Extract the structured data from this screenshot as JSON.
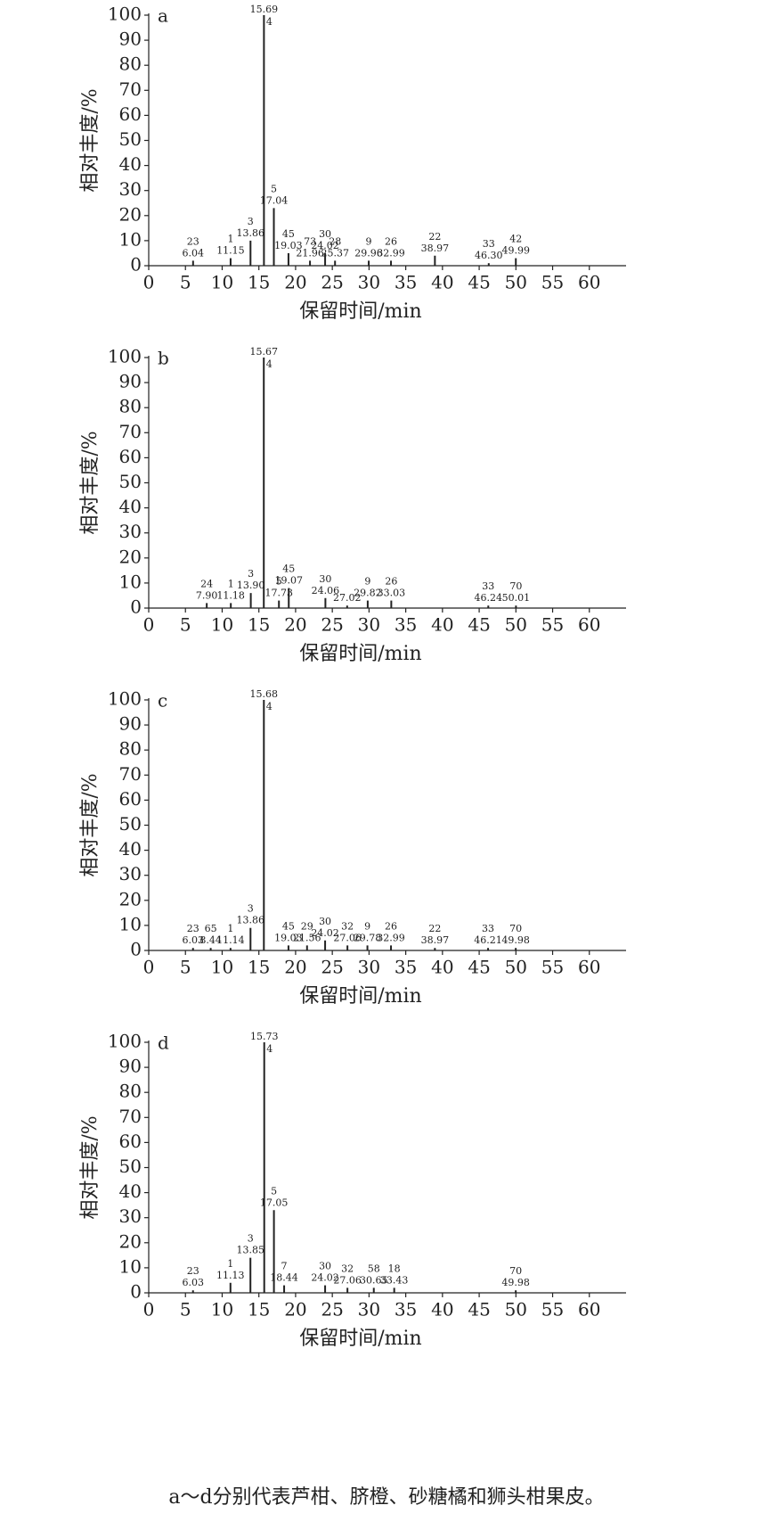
{
  "chart_data": [
    {
      "type": "chromatogram",
      "panel": "a",
      "xlabel": "保留时间/min",
      "ylabel": "相对丰度/%",
      "xlim": [
        0,
        65
      ],
      "ylim": [
        0,
        100
      ],
      "xticks": [
        0,
        5,
        10,
        15,
        20,
        25,
        30,
        35,
        40,
        45,
        50,
        55,
        60
      ],
      "yticks": [
        0,
        10,
        20,
        30,
        40,
        50,
        60,
        70,
        80,
        90,
        100
      ],
      "x": [
        6.04,
        11.15,
        13.86,
        15.69,
        17.04,
        19.03,
        21.96,
        24.02,
        25.37,
        29.96,
        32.99,
        38.97,
        {
          "value": 46.3,
          "label": "46.30"
        },
        49.99
      ],
      "values": [
        2,
        3,
        10,
        100,
        23,
        5,
        2,
        5,
        2,
        2,
        2,
        4,
        1,
        3
      ],
      "peak_labels": [
        "23",
        "1",
        "3",
        "4",
        "5",
        "45",
        "73",
        "30",
        "28",
        "9",
        "26",
        "22",
        "33",
        "42"
      ]
    },
    {
      "type": "chromatogram",
      "panel": "b",
      "xlabel": "保留时间/min",
      "ylabel": "相对丰度/%",
      "xlim": [
        0,
        65
      ],
      "ylim": [
        0,
        100
      ],
      "xticks": [
        0,
        5,
        10,
        15,
        20,
        25,
        30,
        35,
        40,
        45,
        50,
        55,
        60
      ],
      "yticks": [
        0,
        10,
        20,
        30,
        40,
        50,
        60,
        70,
        80,
        90,
        100
      ],
      "x": [
        {
          "value": 7.9,
          "label": "7.90"
        },
        11.18,
        {
          "value": 13.9,
          "label": "13.90"
        },
        15.67,
        17.73,
        19.07,
        24.06,
        27.02,
        29.82,
        33.03,
        46.24,
        50.01
      ],
      "values": [
        2,
        2,
        6,
        100,
        3,
        8,
        4,
        1,
        3,
        3,
        1,
        1
      ],
      "peak_labels": [
        "24",
        "1",
        "3",
        "4",
        "5",
        "45",
        "30",
        null,
        "9",
        "26",
        "33",
        "70"
      ]
    },
    {
      "type": "chromatogram",
      "panel": "c",
      "xlabel": "保留时间/min",
      "ylabel": "相对丰度/%",
      "xlim": [
        0,
        65
      ],
      "ylim": [
        0,
        100
      ],
      "xticks": [
        0,
        5,
        10,
        15,
        20,
        25,
        30,
        35,
        40,
        45,
        50,
        55,
        60
      ],
      "yticks": [
        0,
        10,
        20,
        30,
        40,
        50,
        60,
        70,
        80,
        90,
        100
      ],
      "x": [
        6.03,
        8.44,
        11.14,
        13.86,
        15.68,
        19.03,
        21.56,
        24.02,
        27.06,
        29.78,
        32.99,
        38.97,
        46.21,
        49.98
      ],
      "values": [
        1,
        1,
        1,
        9,
        100,
        2,
        2,
        4,
        2,
        2,
        2,
        1,
        1,
        1
      ],
      "peak_labels": [
        "23",
        "65",
        "1",
        "3",
        "4",
        "45",
        "29",
        "30",
        "32",
        "9",
        "26",
        "22",
        "33",
        "70"
      ]
    },
    {
      "type": "chromatogram",
      "panel": "d",
      "xlabel": "保留时间/min",
      "ylabel": "相对丰度/%",
      "xlim": [
        0,
        65
      ],
      "ylim": [
        0,
        100
      ],
      "xticks": [
        0,
        5,
        10,
        15,
        20,
        25,
        30,
        35,
        40,
        45,
        50,
        55,
        60
      ],
      "yticks": [
        0,
        10,
        20,
        30,
        40,
        50,
        60,
        70,
        80,
        90,
        100
      ],
      "x": [
        6.03,
        11.13,
        13.85,
        15.73,
        17.05,
        18.44,
        24.02,
        27.06,
        30.65,
        33.43,
        49.98
      ],
      "values": [
        1,
        4,
        14,
        100,
        33,
        3,
        3,
        2,
        2,
        2,
        1
      ],
      "peak_labels": [
        "23",
        "1",
        "3",
        "4",
        "5",
        "7",
        "30",
        "32",
        "58",
        "18",
        "70"
      ]
    }
  ],
  "caption": "a～d分别代表芦柑、脐橙、砂糖橘和狮头柑果皮。"
}
